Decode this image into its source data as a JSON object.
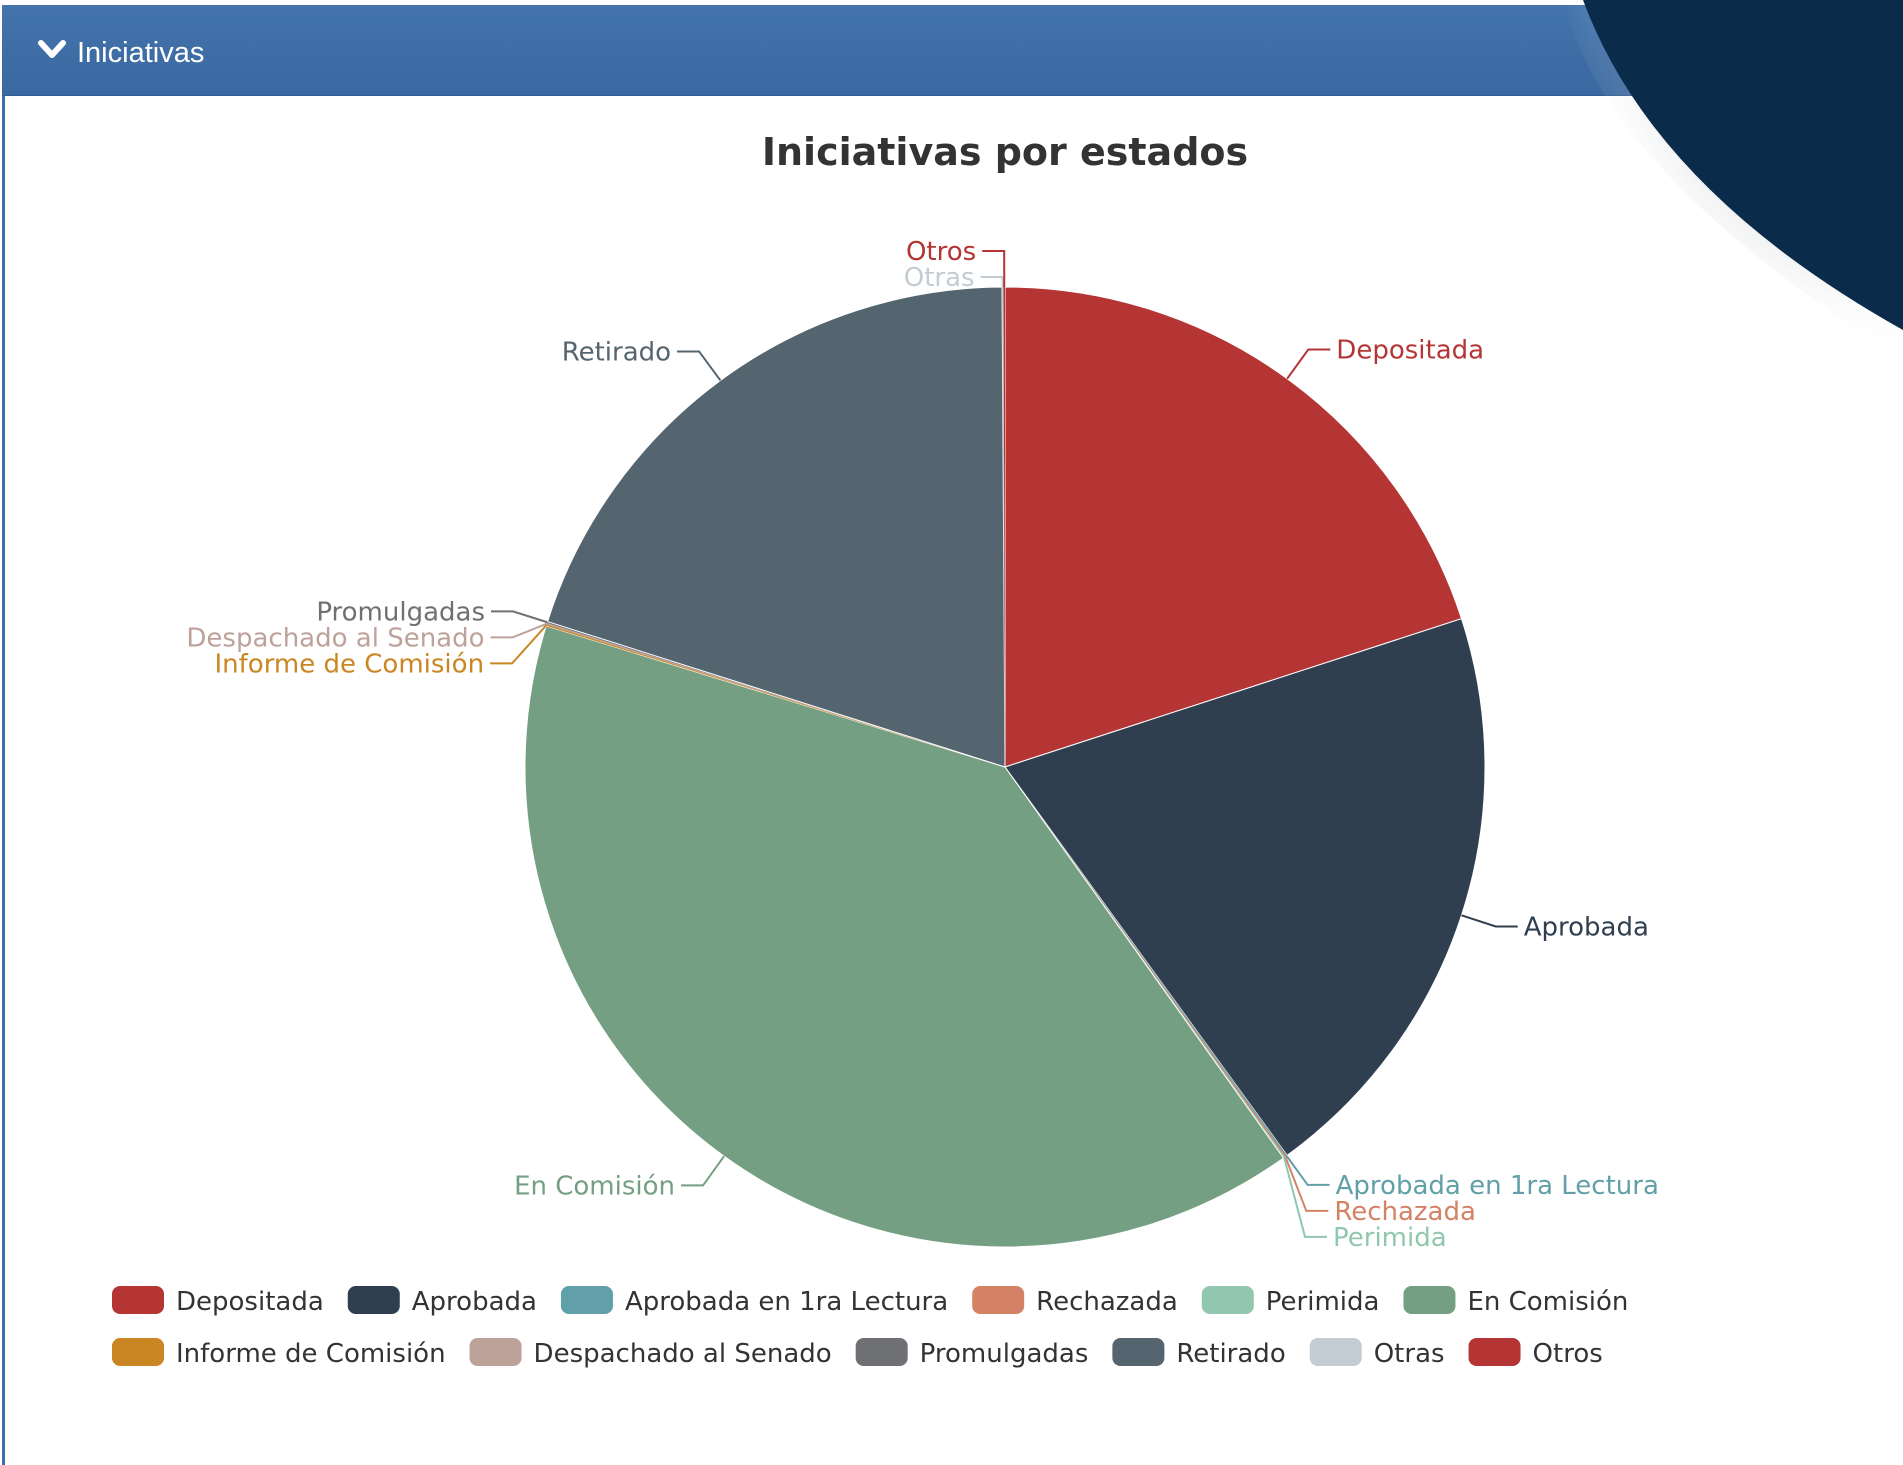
{
  "panel": {
    "title": "Iniciativas",
    "toggle_icon": "chevron-down-icon",
    "header_color": "#3f6ea8"
  },
  "chart_data": {
    "type": "pie",
    "title": "Iniciativas por estados",
    "legend_position": "bottom-left",
    "slices": [
      {
        "label": "Depositada",
        "value": 20.0,
        "color": "#b53535"
      },
      {
        "label": "Aprobada",
        "value": 20.0,
        "color": "#2f3f50"
      },
      {
        "label": "Aprobada en 1ra Lectura",
        "value": 0.05,
        "color": "#61a0a8"
      },
      {
        "label": "Rechazada",
        "value": 0.05,
        "color": "#d48265"
      },
      {
        "label": "Perimida",
        "value": 0.05,
        "color": "#91c7ae"
      },
      {
        "label": "En Comisión",
        "value": 39.6,
        "color": "#749f83"
      },
      {
        "label": "Informe de Comisión",
        "value": 0.05,
        "color": "#ca8622"
      },
      {
        "label": "Despachado al Senado",
        "value": 0.05,
        "color": "#bda29a"
      },
      {
        "label": "Promulgadas",
        "value": 0.05,
        "color": "#6e7074"
      },
      {
        "label": "Retirado",
        "value": 20.0,
        "color": "#546570"
      },
      {
        "label": "Otras",
        "value": 0.05,
        "color": "#c4ccd3"
      },
      {
        "label": "Otros",
        "value": 0.05,
        "color": "#b53535"
      }
    ]
  }
}
